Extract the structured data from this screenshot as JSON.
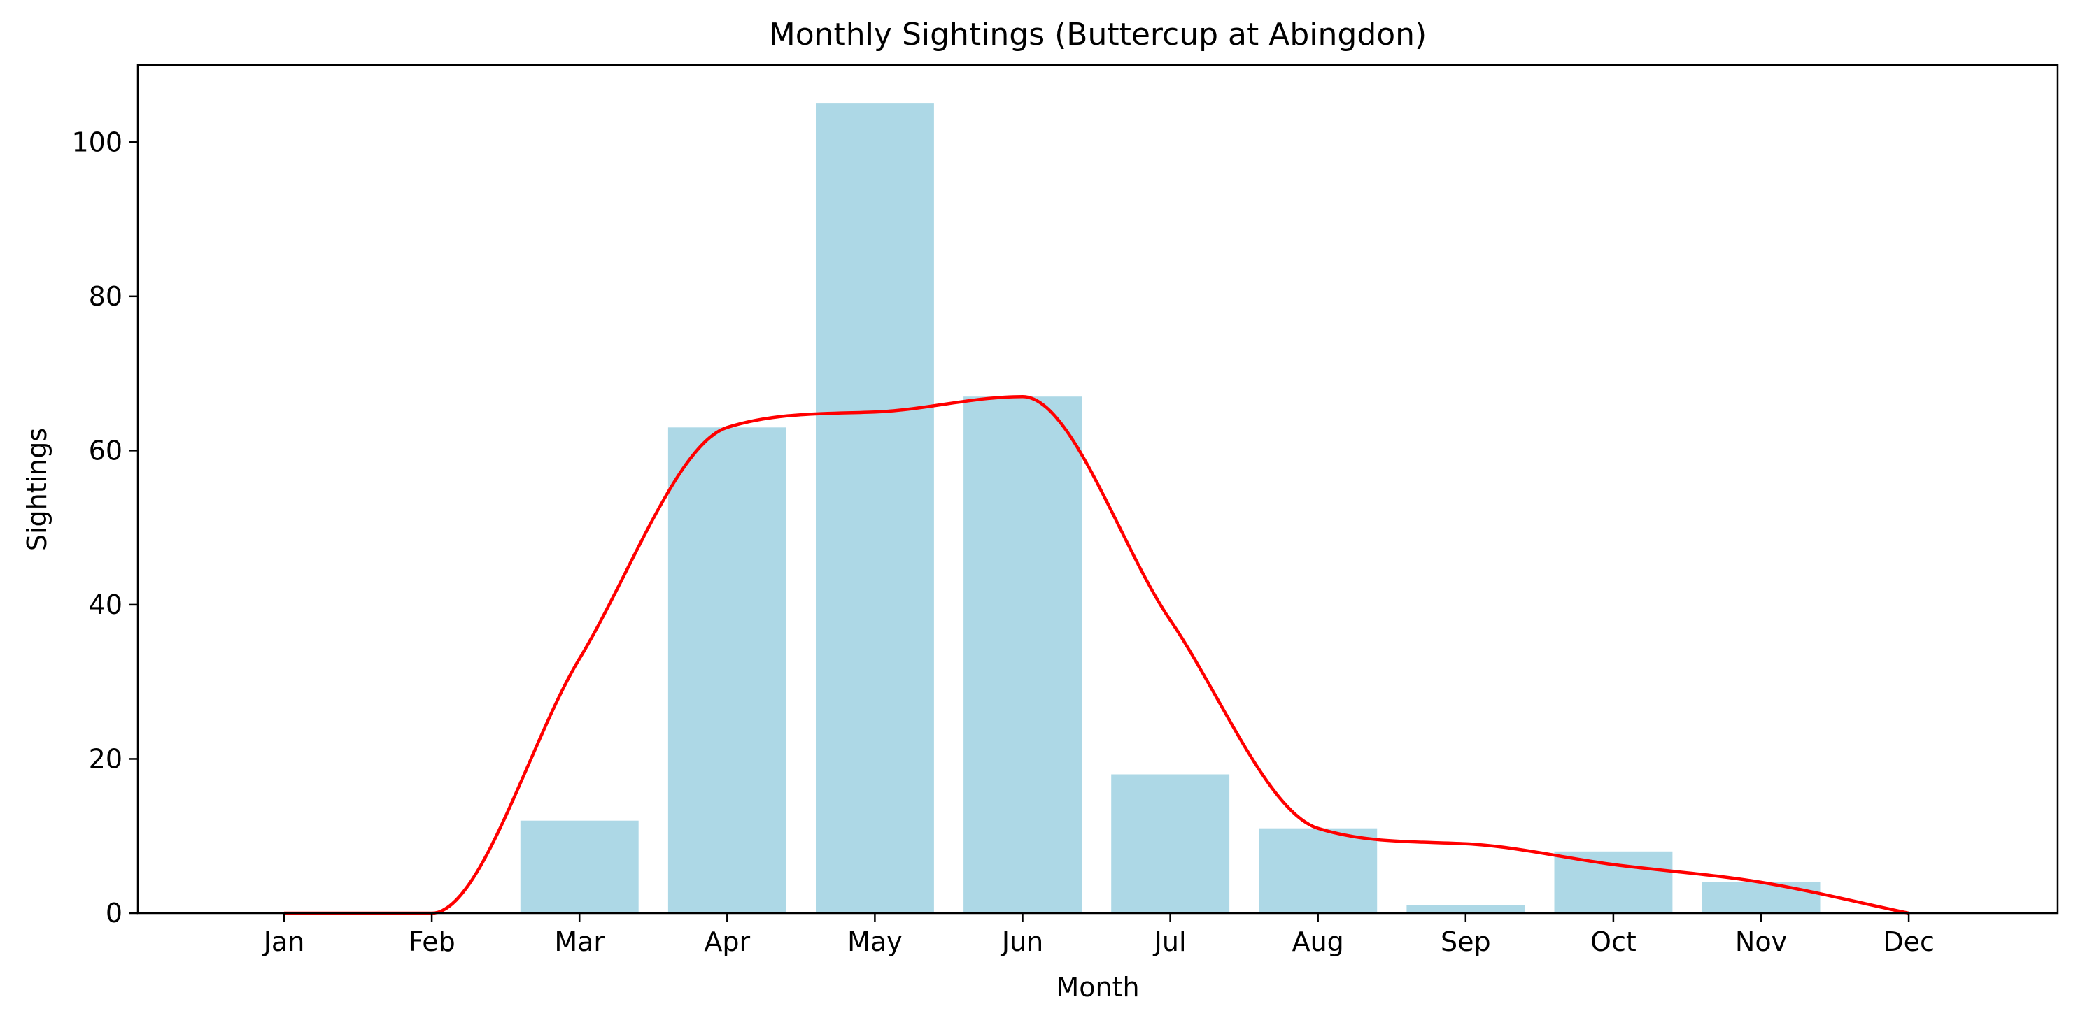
{
  "chart_data": {
    "type": "bar",
    "title": "Monthly Sightings (Buttercup at Abingdon)",
    "xlabel": "Month",
    "ylabel": "Sightings",
    "categories": [
      "Jan",
      "Feb",
      "Mar",
      "Apr",
      "May",
      "Jun",
      "Jul",
      "Aug",
      "Sep",
      "Oct",
      "Nov",
      "Dec"
    ],
    "values": [
      0,
      0,
      12,
      63,
      105,
      67,
      18,
      11,
      1,
      8,
      4,
      0
    ],
    "ylim": [
      0,
      110
    ],
    "yticks": [
      0,
      20,
      40,
      60,
      80,
      100
    ],
    "grid": false,
    "series": [
      {
        "type": "bar",
        "values": [
          0,
          0,
          12,
          63,
          105,
          67,
          18,
          11,
          1,
          8,
          4,
          0
        ],
        "color": "#add8e6"
      },
      {
        "type": "line",
        "curve": "smoothed",
        "values": [
          0,
          0,
          33,
          63,
          65,
          67,
          38,
          11,
          9,
          6.3,
          4,
          0
        ],
        "color": "#ff0000"
      }
    ]
  }
}
